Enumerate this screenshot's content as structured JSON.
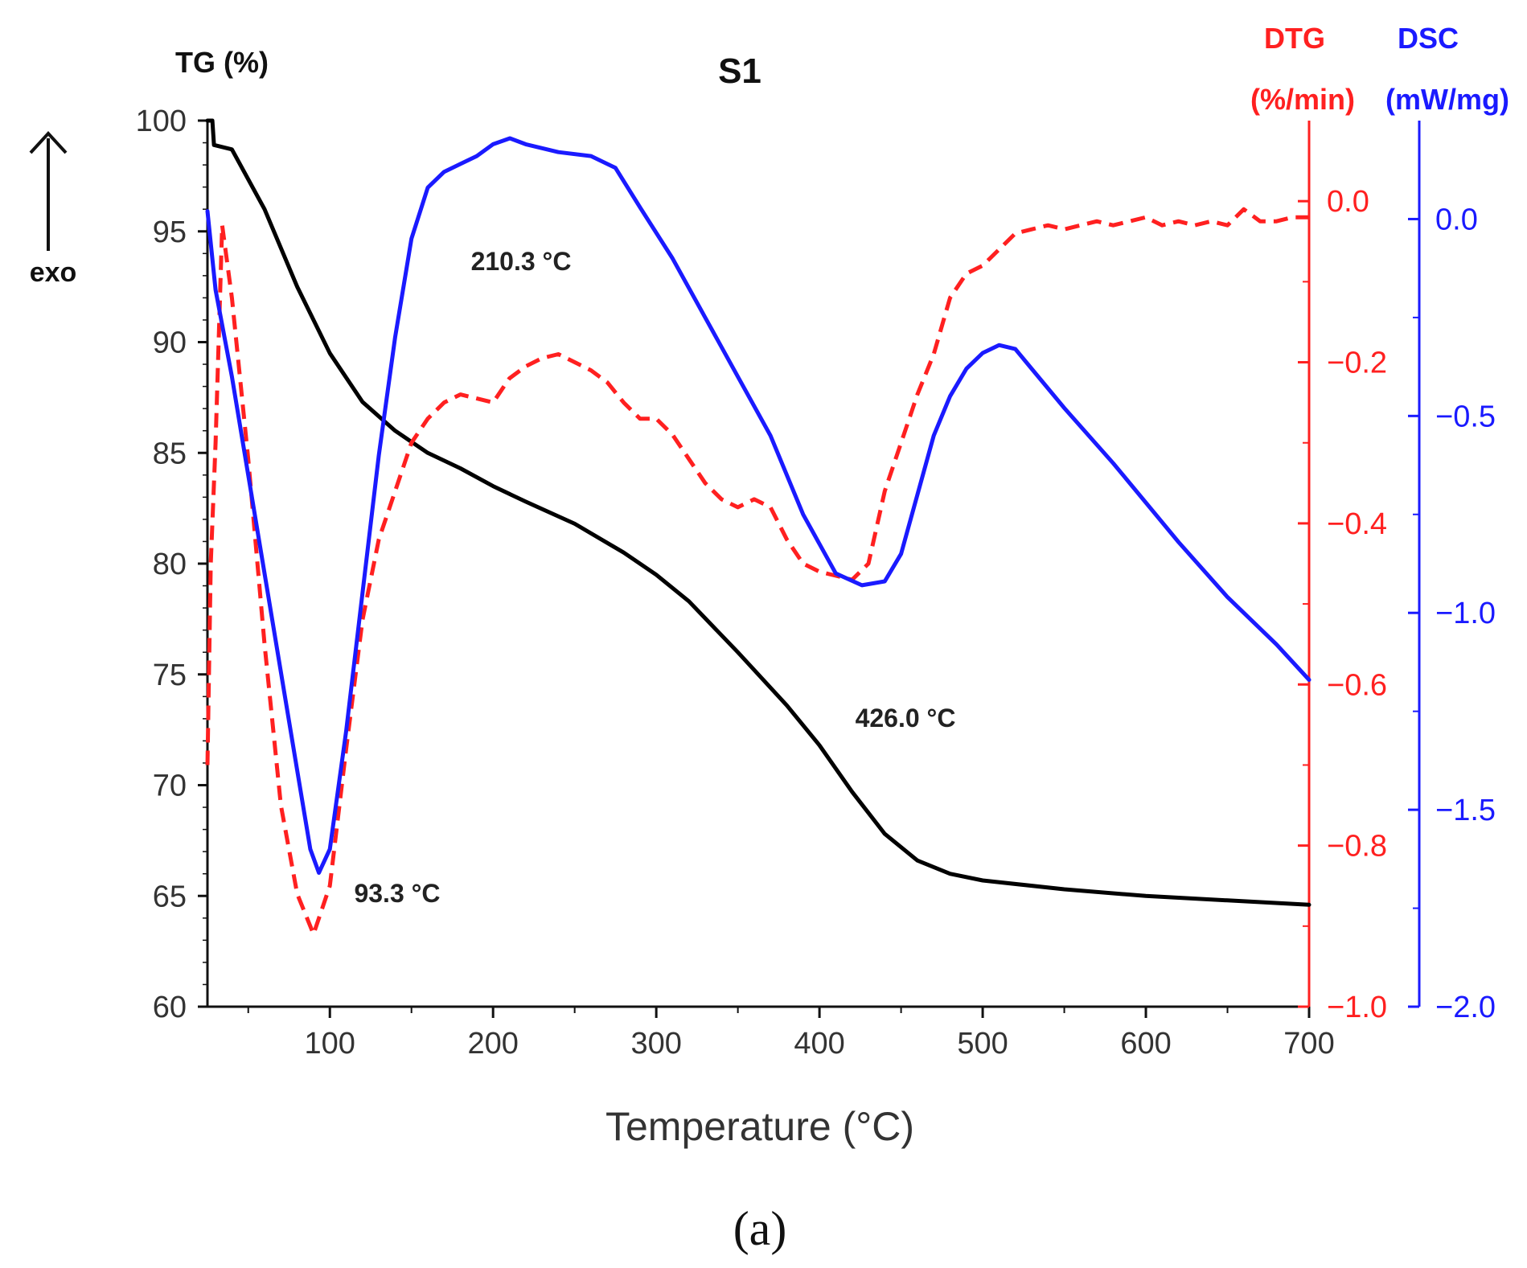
{
  "chart_data": {
    "type": "line",
    "title": "S1",
    "panel_label": "(a)",
    "xlabel": "Temperature (°C)",
    "xlim": [
      25,
      700
    ],
    "x_ticks": [
      100,
      200,
      300,
      400,
      500,
      600,
      700
    ],
    "exo_label": "exo",
    "axes": {
      "tg": {
        "label": "TG (%)",
        "ylim": [
          60,
          100
        ],
        "ticks": [
          60,
          65,
          70,
          75,
          80,
          85,
          90,
          95,
          100
        ],
        "color": "#000000"
      },
      "dtg": {
        "label_top": "DTG",
        "label_unit": "(%/min)",
        "ylim": [
          -1.0,
          0.1
        ],
        "ticks": [
          -1.0,
          -0.8,
          -0.6,
          -0.4,
          -0.2,
          0.0
        ],
        "color": "#ff2020"
      },
      "dsc": {
        "label_top": "DSC",
        "label_unit": "(mW/mg)",
        "ylim": [
          -2.0,
          0.25
        ],
        "ticks": [
          -2.0,
          -1.5,
          -1.0,
          -0.5,
          0.0
        ],
        "color": "#1a1aff"
      }
    },
    "series": [
      {
        "name": "TG",
        "axis": "tg",
        "style": "solid",
        "color": "#000000",
        "x": [
          25,
          28,
          29,
          40,
          60,
          80,
          100,
          120,
          140,
          160,
          180,
          200,
          220,
          250,
          280,
          300,
          320,
          350,
          380,
          400,
          420,
          440,
          460,
          480,
          500,
          550,
          600,
          650,
          700
        ],
        "y": [
          100,
          100,
          98.9,
          98.7,
          96.0,
          92.5,
          89.5,
          87.3,
          86.0,
          85.0,
          84.3,
          83.5,
          82.8,
          81.8,
          80.5,
          79.5,
          78.3,
          76.0,
          73.6,
          71.8,
          69.7,
          67.8,
          66.6,
          66.0,
          65.7,
          65.3,
          65.0,
          64.8,
          64.6
        ]
      },
      {
        "name": "DTG",
        "axis": "dtg",
        "style": "dashed",
        "color": "#ff2020",
        "x": [
          25,
          27,
          30,
          34,
          40,
          50,
          60,
          70,
          80,
          90,
          100,
          110,
          120,
          130,
          140,
          150,
          160,
          170,
          180,
          190,
          200,
          210,
          220,
          230,
          240,
          250,
          260,
          270,
          280,
          290,
          300,
          310,
          320,
          330,
          340,
          350,
          360,
          370,
          380,
          390,
          400,
          410,
          420,
          430,
          440,
          450,
          460,
          470,
          480,
          490,
          500,
          510,
          520,
          530,
          540,
          550,
          560,
          570,
          580,
          590,
          600,
          610,
          620,
          630,
          640,
          650,
          660,
          670,
          680,
          690,
          700
        ],
        "y": [
          -0.7,
          -0.45,
          -0.3,
          -0.03,
          -0.12,
          -0.32,
          -0.55,
          -0.75,
          -0.86,
          -0.91,
          -0.85,
          -0.68,
          -0.52,
          -0.42,
          -0.36,
          -0.3,
          -0.27,
          -0.25,
          -0.24,
          -0.245,
          -0.25,
          -0.22,
          -0.205,
          -0.195,
          -0.19,
          -0.2,
          -0.21,
          -0.225,
          -0.25,
          -0.27,
          -0.27,
          -0.29,
          -0.32,
          -0.35,
          -0.37,
          -0.38,
          -0.37,
          -0.38,
          -0.42,
          -0.45,
          -0.46,
          -0.465,
          -0.47,
          -0.45,
          -0.36,
          -0.3,
          -0.24,
          -0.19,
          -0.12,
          -0.09,
          -0.08,
          -0.06,
          -0.04,
          -0.035,
          -0.03,
          -0.035,
          -0.03,
          -0.025,
          -0.03,
          -0.025,
          -0.02,
          -0.03,
          -0.025,
          -0.03,
          -0.025,
          -0.03,
          -0.01,
          -0.025,
          -0.025,
          -0.02,
          -0.02
        ]
      },
      {
        "name": "DSC",
        "axis": "dsc",
        "style": "solid",
        "color": "#1a1aff",
        "x": [
          25,
          30,
          40,
          50,
          60,
          70,
          80,
          88,
          93.3,
          100,
          110,
          120,
          130,
          140,
          150,
          160,
          170,
          180,
          190,
          200,
          210.3,
          220,
          240,
          260,
          275,
          290,
          310,
          330,
          350,
          370,
          390,
          410,
          426,
          440,
          450,
          460,
          470,
          480,
          490,
          500,
          510,
          520,
          530,
          550,
          580,
          620,
          650,
          680,
          700
        ],
        "y": [
          0.02,
          -0.18,
          -0.4,
          -0.65,
          -0.9,
          -1.15,
          -1.4,
          -1.6,
          -1.66,
          -1.6,
          -1.3,
          -0.95,
          -0.6,
          -0.3,
          -0.05,
          0.08,
          0.12,
          0.14,
          0.16,
          0.19,
          0.205,
          0.19,
          0.17,
          0.16,
          0.13,
          0.03,
          -0.1,
          -0.25,
          -0.4,
          -0.55,
          -0.75,
          -0.9,
          -0.93,
          -0.92,
          -0.85,
          -0.7,
          -0.55,
          -0.45,
          -0.38,
          -0.34,
          -0.32,
          -0.33,
          -0.38,
          -0.48,
          -0.62,
          -0.82,
          -0.96,
          -1.08,
          -1.17
        ]
      }
    ],
    "annotations": [
      {
        "text": "210.3 °C",
        "x": 210.3,
        "series": "DSC"
      },
      {
        "text": "93.3 °C",
        "x": 93.3,
        "series": "DSC"
      },
      {
        "text": "426.0 °C",
        "x": 426.0,
        "series": "DSC"
      }
    ]
  }
}
